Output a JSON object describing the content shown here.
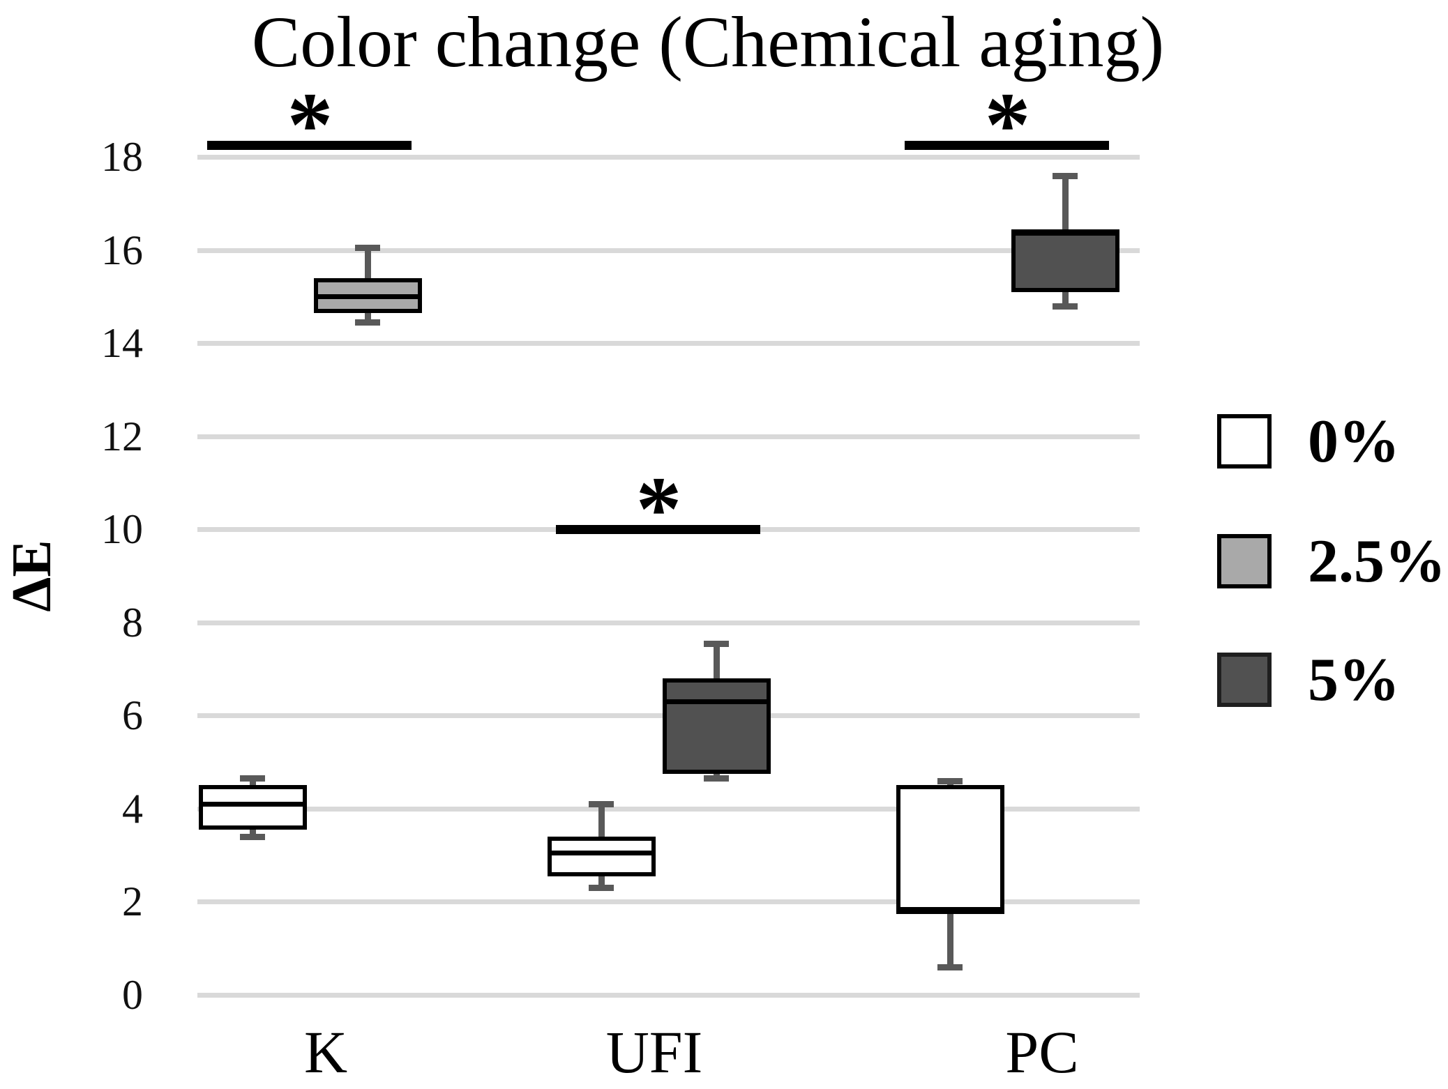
{
  "title": "Color change (Chemical aging)",
  "y_axis": {
    "label": "ΔE",
    "ticks": [
      0,
      2,
      4,
      6,
      8,
      10,
      12,
      14,
      16,
      18
    ],
    "min": 0,
    "max": 18
  },
  "categories": [
    "K",
    "UFI",
    "PC"
  ],
  "legend": {
    "position": "right",
    "entries": [
      {
        "label": "0%",
        "fill": "#ffffff",
        "border": "#000000"
      },
      {
        "label": "2.5%",
        "fill": "#a9a9a9",
        "border": "#000000"
      },
      {
        "label": "5%",
        "fill": "#515151",
        "border": "#1f1f1f"
      }
    ]
  },
  "colors": {
    "gridline": "#d9d9d9",
    "whisker": "#595959",
    "box_border": "#000000",
    "significance": "#000000"
  },
  "chart_data": {
    "type": "boxplot",
    "title": "Color change (Chemical aging)",
    "xlabel": "",
    "ylabel": "ΔE",
    "ylim": [
      0,
      18
    ],
    "grid": true,
    "legend_position": "right",
    "categories": [
      "K",
      "UFI",
      "PC"
    ],
    "series": [
      {
        "name": "0%",
        "fill": "#ffffff",
        "boxes": [
          {
            "category": "K",
            "min": 3.4,
            "q1": 3.55,
            "median": 4.1,
            "q3": 4.5,
            "max": 4.65
          },
          {
            "category": "UFI",
            "min": 2.3,
            "q1": 2.55,
            "median": 3.05,
            "q3": 3.4,
            "max": 4.1
          },
          {
            "category": "PC",
            "min": 0.6,
            "q1": 1.8,
            "median": 1.8,
            "q3": 4.5,
            "max": 4.6
          }
        ]
      },
      {
        "name": "2.5%",
        "fill": "#a9a9a9",
        "boxes": [
          {
            "category": "K",
            "min": 14.45,
            "q1": 14.65,
            "median": 15.0,
            "q3": 15.4,
            "max": 16.05
          }
        ]
      },
      {
        "name": "5%",
        "fill": "#515151",
        "boxes": [
          {
            "category": "UFI",
            "min": 4.65,
            "q1": 4.75,
            "median": 6.3,
            "q3": 6.8,
            "max": 7.55
          },
          {
            "category": "PC",
            "min": 14.8,
            "q1": 15.1,
            "median": 16.4,
            "q3": 16.4,
            "max": 17.6
          }
        ]
      }
    ],
    "significance": [
      {
        "category": "K",
        "between": [
          "0%",
          "2.5%"
        ],
        "marker": "*",
        "bar_y": 18.25
      },
      {
        "category": "UFI",
        "between": [
          "0%",
          "5%"
        ],
        "marker": "*",
        "bar_y": 10.0
      },
      {
        "category": "PC",
        "between": [
          "0%",
          "5%"
        ],
        "marker": "*",
        "bar_y": 18.25
      }
    ]
  }
}
